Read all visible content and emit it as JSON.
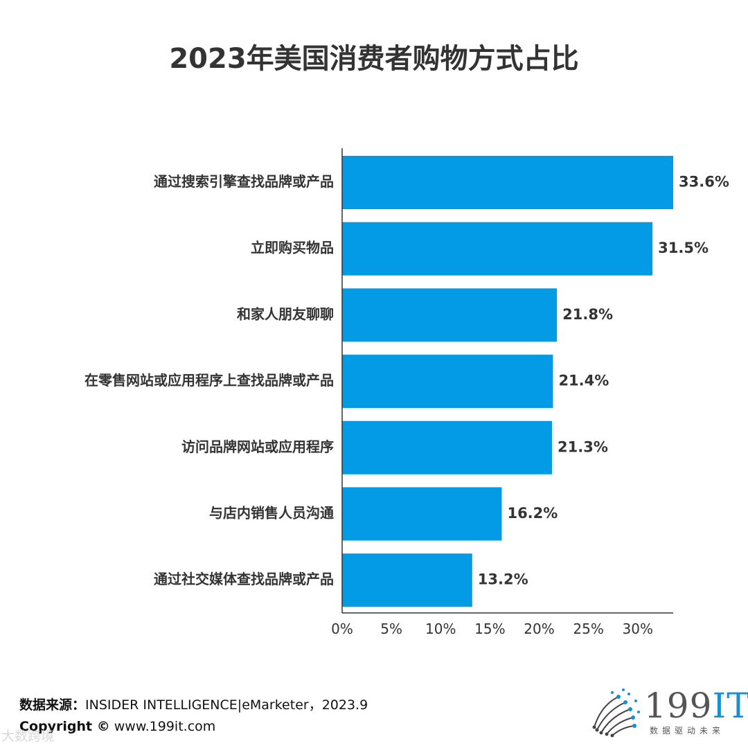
{
  "chart_data": {
    "type": "bar",
    "orientation": "horizontal",
    "title": "2023年美国消费者购物方式占比",
    "categories": [
      "通过搜索引擎查找品牌或产品",
      "立即购买物品",
      "和家人朋友聊聊",
      "在零售网站或应用程序上查找品牌或产品",
      "访问品牌网站或应用程序",
      "与店内销售人员沟通",
      "通过社交媒体查找品牌或产品"
    ],
    "values": [
      33.6,
      31.5,
      21.8,
      21.4,
      21.3,
      16.2,
      13.2
    ],
    "value_labels": [
      "33.6%",
      "31.5%",
      "21.8%",
      "21.4%",
      "21.3%",
      "16.2%",
      "13.2%"
    ],
    "x_ticks": [
      0,
      5,
      10,
      15,
      20,
      25,
      30
    ],
    "x_tick_labels": [
      "0%",
      "5%",
      "10%",
      "15%",
      "20%",
      "25%",
      "30%"
    ],
    "xlim": [
      0,
      33.6
    ],
    "xlabel": "",
    "ylabel": "",
    "grid": false,
    "bar_color": "#039be5"
  },
  "footer": {
    "source_label": "数据来源：",
    "source_text": "INSIDER INTELLIGENCE|eMarketer，2023.9",
    "copyright_label": "Copyright ©",
    "copyright_text": " www.199it.com",
    "watermark": "大数跨境"
  },
  "logo": {
    "name_digits": "199",
    "name_it": "IT",
    "tagline": "数据驱动未来",
    "icon": "data-network-icon"
  }
}
